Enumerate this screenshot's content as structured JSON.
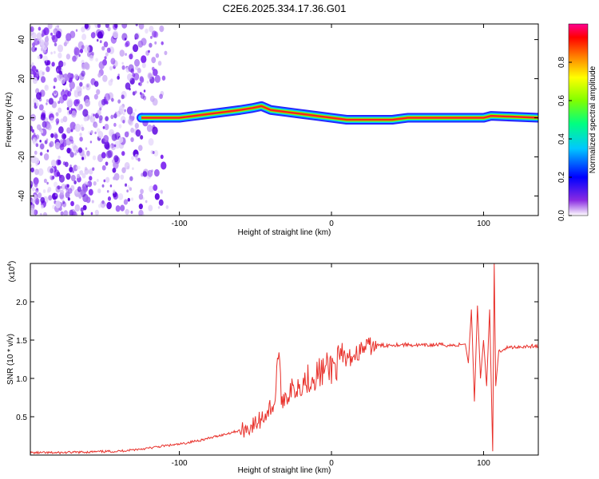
{
  "title": "C2E6.2025.334.17.36.G01",
  "chart_data": [
    {
      "type": "heatmap",
      "xlabel": "Height of straight line (km)",
      "ylabel": "Frequency (Hz)",
      "xlim": [
        -198,
        136
      ],
      "ylim": [
        -50,
        48
      ],
      "xticks": [
        -100,
        0,
        100
      ],
      "xtick_labels": [
        "-100",
        "0",
        "100"
      ],
      "yticks": [
        40,
        20,
        0,
        -20,
        -40
      ],
      "ytick_labels": [
        "40",
        "20",
        "0",
        "-20",
        "-40"
      ],
      "signal_trace": {
        "x": [
          -125,
          -110,
          -100,
          -90,
          -80,
          -70,
          -60,
          -52,
          -46,
          -40,
          -30,
          -20,
          -10,
          0,
          10,
          20,
          30,
          40,
          50,
          60,
          80,
          100,
          105,
          136
        ],
        "y": [
          0,
          0,
          0,
          1,
          2,
          3,
          4,
          5,
          6,
          4,
          3,
          2,
          1,
          0,
          -1,
          -1,
          -1,
          -1,
          0,
          0,
          0,
          0,
          1,
          0
        ]
      },
      "colorbar": {
        "label": "Normalized spectral amplitude",
        "range": [
          0,
          1
        ],
        "ticks": [
          0.0,
          0.2,
          0.4,
          0.6,
          0.8
        ],
        "tick_labels": [
          "0.0",
          "0.2",
          "0.4",
          "0.6",
          "0.8"
        ],
        "colors": [
          "#ffffff",
          "#8a2be2",
          "#0000ff",
          "#00c8ff",
          "#00ff80",
          "#80ff00",
          "#ffff00",
          "#ff8000",
          "#ff0000",
          "#ff0090"
        ]
      }
    },
    {
      "type": "line",
      "xlabel": "Height of straight line (km)",
      "ylabel": "SNR (10 * v/v)",
      "multiplier": "(x10",
      "multiplier_exp": "4",
      "multiplier_close": ")",
      "xlim": [
        -198,
        136
      ],
      "ylim": [
        0,
        2.5
      ],
      "xticks": [
        -100,
        0,
        100
      ],
      "xtick_labels": [
        "-100",
        "0",
        "100"
      ],
      "yticks": [
        0.5,
        1.0,
        1.5,
        2.0
      ],
      "ytick_labels": [
        "0.5",
        "1.0",
        "1.5",
        "2.0"
      ],
      "color": "#e8302a",
      "series": [
        {
          "name": "SNR",
          "x": [
            -198,
            -180,
            -160,
            -140,
            -130,
            -120,
            -110,
            -100,
            -95,
            -90,
            -85,
            -80,
            -75,
            -70,
            -65,
            -60,
            -55,
            -50,
            -45,
            -40,
            -37,
            -35,
            -33,
            -30,
            -25,
            -20,
            -15,
            -10,
            -5,
            0,
            5,
            10,
            15,
            20,
            25,
            30,
            35,
            40,
            50,
            60,
            70,
            80,
            85,
            88,
            90,
            92,
            94,
            96,
            98,
            100,
            102,
            104,
            106,
            107,
            108,
            110,
            115,
            120,
            130,
            136
          ],
          "y": [
            0.03,
            0.03,
            0.04,
            0.05,
            0.07,
            0.09,
            0.12,
            0.14,
            0.16,
            0.18,
            0.2,
            0.22,
            0.25,
            0.27,
            0.3,
            0.32,
            0.35,
            0.4,
            0.5,
            0.62,
            0.7,
            1.4,
            0.75,
            0.78,
            0.85,
            0.95,
            1.0,
            1.05,
            1.1,
            1.15,
            1.2,
            1.25,
            1.3,
            1.38,
            1.42,
            1.43,
            1.43,
            1.44,
            1.44,
            1.43,
            1.44,
            1.43,
            1.44,
            1.45,
            1.2,
            1.9,
            0.7,
            1.95,
            1.0,
            1.5,
            0.9,
            1.9,
            0.05,
            2.5,
            0.9,
            1.35,
            1.4,
            1.41,
            1.42,
            1.42
          ]
        }
      ]
    }
  ]
}
